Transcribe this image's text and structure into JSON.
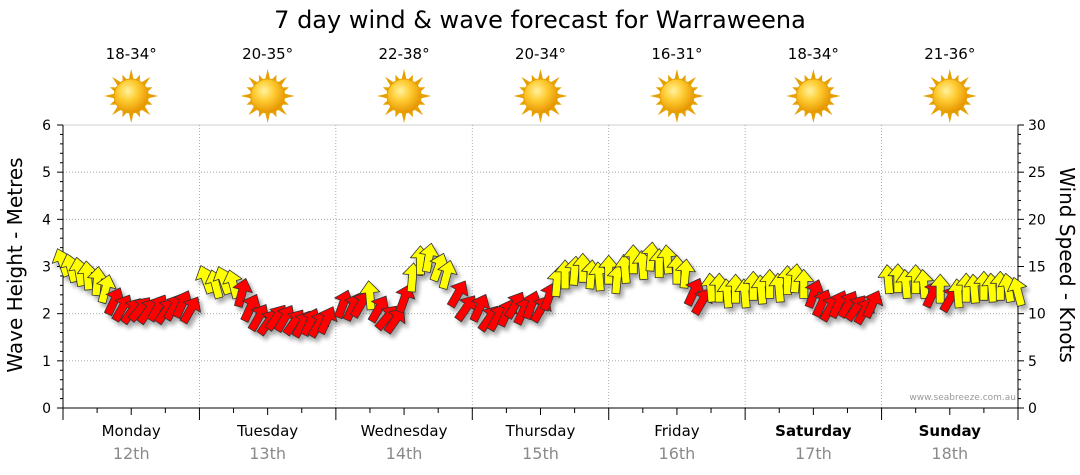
{
  "chart_data": {
    "type": "wind-wave-forecast",
    "title": "7 day wind & wave forecast for Warraweena",
    "left_axis": {
      "label": "Wave Height - Metres",
      "range": [
        0,
        6
      ],
      "ticks": [
        "0",
        "1",
        "2",
        "3",
        "4",
        "5",
        "6"
      ]
    },
    "right_axis": {
      "label": "Wind Speed - Knots",
      "range": [
        0,
        30
      ],
      "ticks": [
        "0",
        "5",
        "10",
        "15",
        "20",
        "25",
        "30"
      ]
    },
    "days": [
      {
        "name": "Monday",
        "date": "12th",
        "temp": "18-34°",
        "weather": "sunny",
        "bold": false
      },
      {
        "name": "Tuesday",
        "date": "13th",
        "temp": "20-35°",
        "weather": "sunny",
        "bold": false
      },
      {
        "name": "Wednesday",
        "date": "14th",
        "temp": "22-38°",
        "weather": "sunny",
        "bold": false
      },
      {
        "name": "Thursday",
        "date": "15th",
        "temp": "20-34°",
        "weather": "sunny",
        "bold": false
      },
      {
        "name": "Friday",
        "date": "16th",
        "temp": "16-31°",
        "weather": "sunny",
        "bold": false
      },
      {
        "name": "Saturday",
        "date": "17th",
        "temp": "18-34°",
        "weather": "sunny",
        "bold": true
      },
      {
        "name": "Sunday",
        "date": "18th",
        "temp": "21-36°",
        "weather": "sunny",
        "bold": true
      }
    ],
    "wind_series": {
      "name": "Wind",
      "units": "knots",
      "points": [
        {
          "day": 0.0,
          "speed": 15.3,
          "dir": 160,
          "color": "yellow"
        },
        {
          "day": 0.06,
          "speed": 14.7,
          "dir": 165,
          "color": "yellow"
        },
        {
          "day": 0.12,
          "speed": 14.3,
          "dir": 170,
          "color": "yellow"
        },
        {
          "day": 0.18,
          "speed": 13.9,
          "dir": 175,
          "color": "yellow"
        },
        {
          "day": 0.25,
          "speed": 13.3,
          "dir": 185,
          "color": "yellow"
        },
        {
          "day": 0.31,
          "speed": 12.5,
          "dir": 195,
          "color": "yellow"
        },
        {
          "day": 0.37,
          "speed": 11.2,
          "dir": 205,
          "color": "red"
        },
        {
          "day": 0.43,
          "speed": 10.5,
          "dir": 210,
          "color": "red"
        },
        {
          "day": 0.5,
          "speed": 10.2,
          "dir": 215,
          "color": "red"
        },
        {
          "day": 0.56,
          "speed": 10.4,
          "dir": 220,
          "color": "red"
        },
        {
          "day": 0.62,
          "speed": 10.2,
          "dir": 215,
          "color": "red"
        },
        {
          "day": 0.69,
          "speed": 10.5,
          "dir": 210,
          "color": "red"
        },
        {
          "day": 0.75,
          "speed": 10.2,
          "dir": 215,
          "color": "red"
        },
        {
          "day": 0.81,
          "speed": 10.6,
          "dir": 210,
          "color": "red"
        },
        {
          "day": 0.87,
          "speed": 10.9,
          "dir": 205,
          "color": "red"
        },
        {
          "day": 0.93,
          "speed": 10.3,
          "dir": 210,
          "color": "red"
        },
        {
          "day": 1.05,
          "speed": 13.5,
          "dir": 160,
          "color": "yellow"
        },
        {
          "day": 1.12,
          "speed": 13.0,
          "dir": 165,
          "color": "yellow"
        },
        {
          "day": 1.18,
          "speed": 13.4,
          "dir": 160,
          "color": "yellow"
        },
        {
          "day": 1.25,
          "speed": 13.0,
          "dir": 165,
          "color": "yellow"
        },
        {
          "day": 1.31,
          "speed": 12.1,
          "dir": 195,
          "color": "red"
        },
        {
          "day": 1.37,
          "speed": 10.5,
          "dir": 205,
          "color": "red"
        },
        {
          "day": 1.43,
          "speed": 9.5,
          "dir": 210,
          "color": "red"
        },
        {
          "day": 1.5,
          "speed": 9.0,
          "dir": 215,
          "color": "red"
        },
        {
          "day": 1.56,
          "speed": 9.5,
          "dir": 215,
          "color": "red"
        },
        {
          "day": 1.62,
          "speed": 9.4,
          "dir": 210,
          "color": "red"
        },
        {
          "day": 1.69,
          "speed": 9.0,
          "dir": 215,
          "color": "red"
        },
        {
          "day": 1.75,
          "speed": 8.8,
          "dir": 210,
          "color": "red"
        },
        {
          "day": 1.81,
          "speed": 9.0,
          "dir": 205,
          "color": "red"
        },
        {
          "day": 1.87,
          "speed": 8.8,
          "dir": 210,
          "color": "red"
        },
        {
          "day": 1.93,
          "speed": 9.2,
          "dir": 205,
          "color": "red"
        },
        {
          "day": 2.05,
          "speed": 10.9,
          "dir": 200,
          "color": "red"
        },
        {
          "day": 2.12,
          "speed": 10.6,
          "dir": 205,
          "color": "red"
        },
        {
          "day": 2.18,
          "speed": 10.9,
          "dir": 210,
          "color": "red"
        },
        {
          "day": 2.25,
          "speed": 11.8,
          "dir": 175,
          "color": "yellow"
        },
        {
          "day": 2.31,
          "speed": 10.4,
          "dir": 210,
          "color": "red"
        },
        {
          "day": 2.37,
          "speed": 9.5,
          "dir": 220,
          "color": "red"
        },
        {
          "day": 2.43,
          "speed": 9.2,
          "dir": 215,
          "color": "red"
        },
        {
          "day": 2.5,
          "speed": 11.5,
          "dir": 200,
          "color": "red"
        },
        {
          "day": 2.56,
          "speed": 13.7,
          "dir": 185,
          "color": "yellow"
        },
        {
          "day": 2.62,
          "speed": 15.5,
          "dir": 180,
          "color": "yellow"
        },
        {
          "day": 2.68,
          "speed": 15.8,
          "dir": 190,
          "color": "yellow"
        },
        {
          "day": 2.75,
          "speed": 14.8,
          "dir": 200,
          "color": "yellow"
        },
        {
          "day": 2.81,
          "speed": 14.0,
          "dir": 195,
          "color": "yellow"
        },
        {
          "day": 2.89,
          "speed": 12.0,
          "dir": 210,
          "color": "red"
        },
        {
          "day": 2.95,
          "speed": 10.5,
          "dir": 215,
          "color": "red"
        },
        {
          "day": 3.05,
          "speed": 10.5,
          "dir": 205,
          "color": "red"
        },
        {
          "day": 3.12,
          "speed": 9.4,
          "dir": 215,
          "color": "red"
        },
        {
          "day": 3.18,
          "speed": 9.5,
          "dir": 210,
          "color": "red"
        },
        {
          "day": 3.25,
          "speed": 10.0,
          "dir": 205,
          "color": "red"
        },
        {
          "day": 3.31,
          "speed": 10.8,
          "dir": 210,
          "color": "red"
        },
        {
          "day": 3.37,
          "speed": 10.2,
          "dir": 205,
          "color": "red"
        },
        {
          "day": 3.43,
          "speed": 10.8,
          "dir": 200,
          "color": "red"
        },
        {
          "day": 3.5,
          "speed": 10.4,
          "dir": 210,
          "color": "red"
        },
        {
          "day": 3.56,
          "speed": 11.7,
          "dir": 200,
          "color": "red"
        },
        {
          "day": 3.62,
          "speed": 13.2,
          "dir": 185,
          "color": "yellow"
        },
        {
          "day": 3.68,
          "speed": 14.0,
          "dir": 180,
          "color": "yellow"
        },
        {
          "day": 3.75,
          "speed": 14.4,
          "dir": 185,
          "color": "yellow"
        },
        {
          "day": 3.81,
          "speed": 14.7,
          "dir": 180,
          "color": "yellow"
        },
        {
          "day": 3.87,
          "speed": 14.0,
          "dir": 185,
          "color": "yellow"
        },
        {
          "day": 3.93,
          "speed": 13.8,
          "dir": 175,
          "color": "yellow"
        },
        {
          "day": 4.0,
          "speed": 14.5,
          "dir": 180,
          "color": "yellow"
        },
        {
          "day": 4.06,
          "speed": 13.5,
          "dir": 185,
          "color": "yellow"
        },
        {
          "day": 4.12,
          "speed": 14.6,
          "dir": 175,
          "color": "yellow"
        },
        {
          "day": 4.18,
          "speed": 15.6,
          "dir": 180,
          "color": "yellow"
        },
        {
          "day": 4.25,
          "speed": 15.0,
          "dir": 175,
          "color": "yellow"
        },
        {
          "day": 4.31,
          "speed": 15.9,
          "dir": 185,
          "color": "yellow"
        },
        {
          "day": 4.37,
          "speed": 15.2,
          "dir": 180,
          "color": "yellow"
        },
        {
          "day": 4.43,
          "speed": 15.6,
          "dir": 175,
          "color": "yellow"
        },
        {
          "day": 4.5,
          "speed": 14.5,
          "dir": 180,
          "color": "yellow"
        },
        {
          "day": 4.56,
          "speed": 14.1,
          "dir": 185,
          "color": "yellow"
        },
        {
          "day": 4.62,
          "speed": 12.2,
          "dir": 205,
          "color": "red"
        },
        {
          "day": 4.68,
          "speed": 11.2,
          "dir": 210,
          "color": "red"
        },
        {
          "day": 4.75,
          "speed": 12.6,
          "dir": 175,
          "color": "yellow"
        },
        {
          "day": 4.81,
          "speed": 12.6,
          "dir": 180,
          "color": "yellow"
        },
        {
          "day": 4.87,
          "speed": 12.0,
          "dir": 175,
          "color": "yellow"
        },
        {
          "day": 4.93,
          "speed": 12.5,
          "dir": 180,
          "color": "yellow"
        },
        {
          "day": 5.0,
          "speed": 12.0,
          "dir": 175,
          "color": "yellow"
        },
        {
          "day": 5.06,
          "speed": 12.8,
          "dir": 180,
          "color": "yellow"
        },
        {
          "day": 5.12,
          "speed": 12.4,
          "dir": 175,
          "color": "yellow"
        },
        {
          "day": 5.18,
          "speed": 13.0,
          "dir": 180,
          "color": "yellow"
        },
        {
          "day": 5.25,
          "speed": 12.6,
          "dir": 175,
          "color": "yellow"
        },
        {
          "day": 5.31,
          "speed": 13.4,
          "dir": 180,
          "color": "yellow"
        },
        {
          "day": 5.37,
          "speed": 13.6,
          "dir": 185,
          "color": "yellow"
        },
        {
          "day": 5.43,
          "speed": 13.0,
          "dir": 180,
          "color": "yellow"
        },
        {
          "day": 5.5,
          "speed": 12.0,
          "dir": 200,
          "color": "red"
        },
        {
          "day": 5.56,
          "speed": 11.0,
          "dir": 205,
          "color": "red"
        },
        {
          "day": 5.62,
          "speed": 10.5,
          "dir": 210,
          "color": "red"
        },
        {
          "day": 5.68,
          "speed": 10.9,
          "dir": 205,
          "color": "red"
        },
        {
          "day": 5.75,
          "speed": 10.9,
          "dir": 210,
          "color": "red"
        },
        {
          "day": 5.81,
          "speed": 10.5,
          "dir": 215,
          "color": "red"
        },
        {
          "day": 5.87,
          "speed": 10.2,
          "dir": 210,
          "color": "red"
        },
        {
          "day": 5.93,
          "speed": 10.9,
          "dir": 205,
          "color": "red"
        },
        {
          "day": 6.05,
          "speed": 13.5,
          "dir": 175,
          "color": "yellow"
        },
        {
          "day": 6.12,
          "speed": 13.6,
          "dir": 180,
          "color": "yellow"
        },
        {
          "day": 6.18,
          "speed": 13.0,
          "dir": 175,
          "color": "yellow"
        },
        {
          "day": 6.25,
          "speed": 13.5,
          "dir": 180,
          "color": "yellow"
        },
        {
          "day": 6.31,
          "speed": 13.0,
          "dir": 175,
          "color": "yellow"
        },
        {
          "day": 6.37,
          "speed": 12.0,
          "dir": 205,
          "color": "red"
        },
        {
          "day": 6.43,
          "speed": 12.5,
          "dir": 180,
          "color": "yellow"
        },
        {
          "day": 6.5,
          "speed": 11.5,
          "dir": 210,
          "color": "red"
        },
        {
          "day": 6.56,
          "speed": 12.0,
          "dir": 175,
          "color": "yellow"
        },
        {
          "day": 6.62,
          "speed": 12.6,
          "dir": 180,
          "color": "yellow"
        },
        {
          "day": 6.68,
          "speed": 12.5,
          "dir": 175,
          "color": "yellow"
        },
        {
          "day": 6.75,
          "speed": 12.8,
          "dir": 180,
          "color": "yellow"
        },
        {
          "day": 6.81,
          "speed": 12.6,
          "dir": 175,
          "color": "yellow"
        },
        {
          "day": 6.87,
          "speed": 12.8,
          "dir": 180,
          "color": "yellow"
        },
        {
          "day": 6.93,
          "speed": 12.6,
          "dir": 170,
          "color": "yellow"
        },
        {
          "day": 7.0,
          "speed": 12.2,
          "dir": 165,
          "color": "yellow"
        }
      ]
    },
    "colors": {
      "yellow_fill": "#ffff00",
      "red_fill": "#ff0000",
      "arrow_stroke": "#333333",
      "sun_outer": "#e6a000",
      "sun_inner": "#ffcc33",
      "grid": "#9a9a9a"
    },
    "grid": true
  },
  "credit": "www.seabreeze.com.au"
}
